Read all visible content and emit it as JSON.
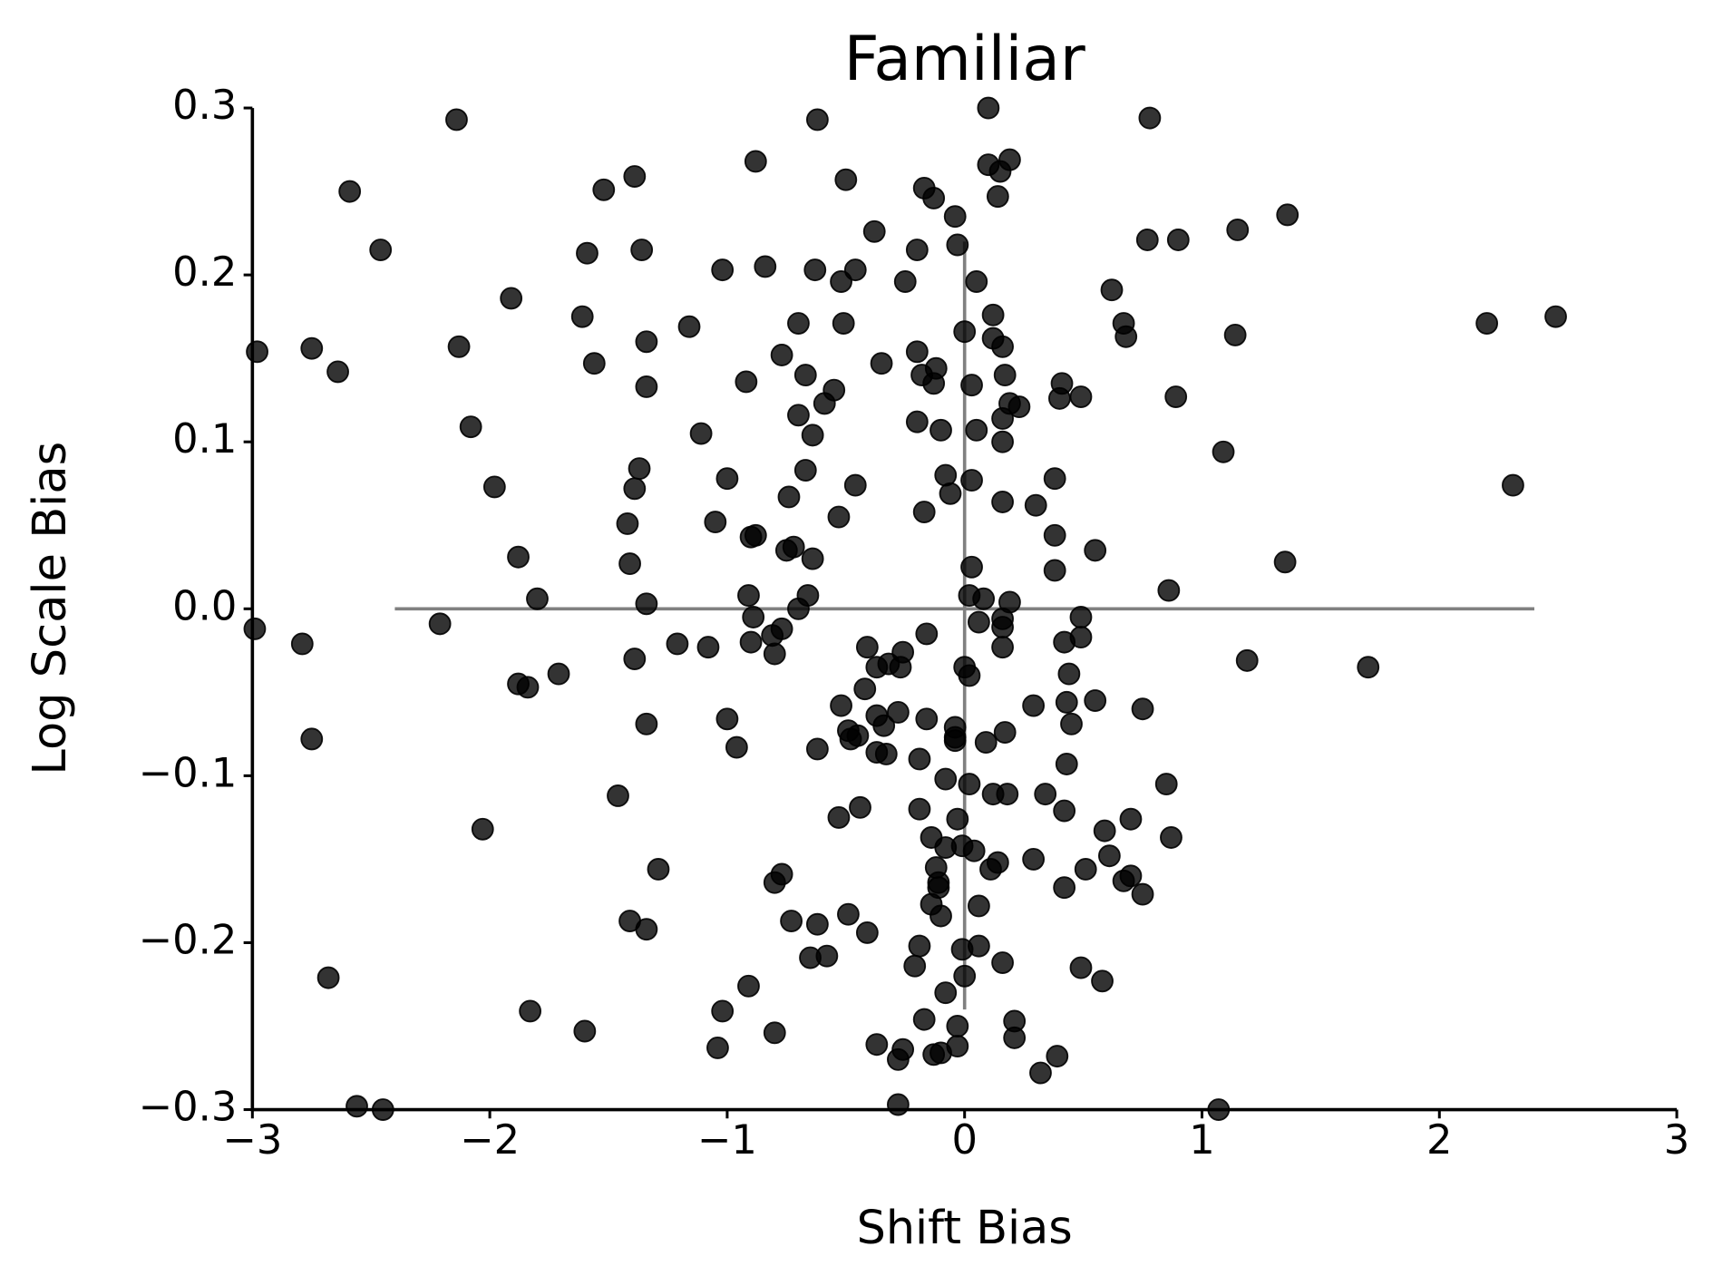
{
  "chart_data": {
    "type": "scatter",
    "title": "Familiar",
    "xlabel": "Shift Bias",
    "ylabel": "Log Scale Bias",
    "color": "#000000",
    "alpha": 0.8,
    "xlim": [
      -3,
      3
    ],
    "ylim": [
      -0.3,
      0.3
    ],
    "xticks": [
      {
        "value": -3,
        "label": "−3"
      },
      {
        "value": -2,
        "label": "−2"
      },
      {
        "value": -1,
        "label": "−1"
      },
      0,
      1,
      2,
      3
    ],
    "yticks": [
      {
        "value": -0.3,
        "label": "−0.3"
      },
      {
        "value": -0.2,
        "label": "−0.2"
      },
      {
        "value": -0.1,
        "label": "−0.1"
      },
      {
        "value": 0,
        "label": "0.0"
      },
      0.1,
      0.2,
      0.3
    ],
    "reference_lines": {
      "horizontal": {
        "y": 0,
        "xmin": -2.4,
        "xmax": 2.4
      },
      "vertical": {
        "x": 0,
        "ymin": -0.24,
        "ymax": 0.22
      },
      "color": "#808080"
    },
    "x": [
      -2.14,
      -0.62,
      0.1,
      0.78,
      -2.59,
      -0.88,
      -1.39,
      -1.52,
      -0.5,
      -0.17,
      -0.13,
      0.1,
      0.15,
      0.19,
      0.14,
      -0.04,
      -0.03,
      1.36,
      1.15,
      0.9,
      0.77,
      -2.46,
      -1.36,
      -1.59,
      -0.38,
      -0.2,
      -0.84,
      -1.02,
      -0.63,
      -0.46,
      -0.25,
      -0.52,
      0.05,
      -1.91,
      0.62,
      -1.61,
      -1.16,
      -0.7,
      -0.51,
      0.67,
      0.68,
      2.2,
      2.49,
      1.14,
      -2.98,
      -2.75,
      -2.13,
      -1.34,
      -0.77,
      -1.56,
      -2.64,
      -0.35,
      -0.2,
      -0.12,
      0.0,
      0.12,
      0.12,
      0.16,
      0.17,
      -0.18,
      -0.13,
      0.03,
      0.41,
      0.49,
      0.4,
      0.89,
      -1.34,
      -0.92,
      -0.67,
      -0.55,
      -0.59,
      0.19,
      0.23,
      0.16,
      0.05,
      -0.1,
      -0.2,
      -0.7,
      -0.64,
      -1.11,
      -2.08,
      0.16,
      1.09,
      2.31,
      -1.37,
      -1.39,
      -1.98,
      -1.0,
      -0.67,
      -0.46,
      -0.08,
      -0.06,
      0.03,
      0.38,
      -0.74,
      -0.17,
      0.16,
      0.3,
      -0.53,
      -1.05,
      -1.42,
      -0.88,
      -0.9,
      0.38,
      -1.88,
      -0.75,
      -0.72,
      -0.64,
      0.55,
      1.35,
      -1.41,
      0.03,
      0.38,
      0.86,
      -1.8,
      -1.34,
      -0.91,
      -0.66,
      -0.7,
      0.02,
      0.08,
      0.19,
      -2.99,
      -2.79,
      -2.21,
      -0.89,
      -0.9,
      -1.21,
      -1.08,
      -0.77,
      -0.81,
      -0.8,
      -1.39,
      0.06,
      0.16,
      0.16,
      0.16,
      -0.16,
      -0.41,
      -0.26,
      0.42,
      0.49,
      0.49,
      1.19,
      1.7,
      -1.71,
      -1.88,
      -1.84,
      -0.37,
      -0.32,
      -0.27,
      0.0,
      0.02,
      0.44,
      -0.42,
      0.29,
      0.43,
      0.55,
      0.75,
      -0.52,
      -0.28,
      -0.37,
      -0.16,
      -1.0,
      -1.34,
      -0.34,
      -0.49,
      -0.45,
      -0.48,
      -0.04,
      -0.04,
      -0.04,
      0.17,
      0.09,
      0.45,
      -2.75,
      -0.96,
      -0.62,
      -0.37,
      -0.33,
      -0.19,
      0.43,
      -0.08,
      0.02,
      0.85,
      -1.46,
      0.12,
      0.18,
      0.34,
      -0.44,
      -0.19,
      0.42,
      -0.53,
      -0.03,
      0.7,
      -2.03,
      0.59,
      -0.14,
      0.87,
      -0.08,
      -0.01,
      0.04,
      0.61,
      0.29,
      0.14,
      0.11,
      -0.12,
      -1.29,
      0.51,
      -0.77,
      -0.8,
      -0.11,
      0.7,
      0.67,
      -0.11,
      0.42,
      0.75,
      -0.14,
      0.06,
      -1.41,
      -0.73,
      -0.49,
      -0.1,
      -0.62,
      -1.34,
      -0.41,
      -0.19,
      -0.01,
      0.06,
      -0.65,
      -0.58,
      -0.21,
      0.16,
      0.49,
      0.58,
      -2.68,
      -0.91,
      0.0,
      -0.08,
      -1.83,
      -1.02,
      -1.6,
      -0.8,
      -0.17,
      -0.03,
      0.21,
      0.21,
      -1.04,
      -0.37,
      -0.26,
      -0.28,
      -0.13,
      -0.1,
      -0.03,
      0.39,
      0.32,
      -2.56,
      -2.45,
      -0.28,
      1.07
    ],
    "y": [
      0.293,
      0.293,
      0.3,
      0.294,
      0.25,
      0.268,
      0.259,
      0.251,
      0.257,
      0.252,
      0.246,
      0.266,
      0.262,
      0.269,
      0.247,
      0.235,
      0.218,
      0.236,
      0.227,
      0.221,
      0.221,
      0.215,
      0.215,
      0.213,
      0.226,
      0.215,
      0.205,
      0.203,
      0.203,
      0.203,
      0.196,
      0.196,
      0.196,
      0.186,
      0.191,
      0.175,
      0.169,
      0.171,
      0.171,
      0.171,
      0.163,
      0.171,
      0.175,
      0.164,
      0.154,
      0.156,
      0.157,
      0.16,
      0.152,
      0.147,
      0.142,
      0.147,
      0.154,
      0.144,
      0.166,
      0.176,
      0.162,
      0.157,
      0.14,
      0.14,
      0.135,
      0.134,
      0.135,
      0.127,
      0.126,
      0.127,
      0.133,
      0.136,
      0.14,
      0.131,
      0.123,
      0.123,
      0.121,
      0.114,
      0.107,
      0.107,
      0.112,
      0.116,
      0.104,
      0.105,
      0.109,
      0.1,
      0.094,
      0.074,
      0.084,
      0.072,
      0.073,
      0.078,
      0.083,
      0.074,
      0.08,
      0.069,
      0.077,
      0.078,
      0.067,
      0.058,
      0.064,
      0.062,
      0.055,
      0.052,
      0.051,
      0.044,
      0.043,
      0.044,
      0.031,
      0.035,
      0.037,
      0.03,
      0.035,
      0.028,
      0.027,
      0.025,
      0.023,
      0.011,
      0.006,
      0.003,
      0.008,
      0.008,
      0.0,
      0.008,
      0.006,
      0.004,
      -0.012,
      -0.021,
      -0.009,
      -0.005,
      -0.02,
      -0.021,
      -0.023,
      -0.012,
      -0.016,
      -0.027,
      -0.03,
      -0.008,
      -0.006,
      -0.011,
      -0.023,
      -0.015,
      -0.023,
      -0.026,
      -0.02,
      -0.005,
      -0.017,
      -0.031,
      -0.035,
      -0.039,
      -0.045,
      -0.047,
      -0.035,
      -0.033,
      -0.035,
      -0.035,
      -0.04,
      -0.039,
      -0.048,
      -0.058,
      -0.056,
      -0.055,
      -0.06,
      -0.058,
      -0.062,
      -0.064,
      -0.066,
      -0.066,
      -0.069,
      -0.07,
      -0.073,
      -0.076,
      -0.078,
      -0.071,
      -0.077,
      -0.079,
      -0.074,
      -0.08,
      -0.069,
      -0.078,
      -0.083,
      -0.084,
      -0.086,
      -0.087,
      -0.09,
      -0.093,
      -0.102,
      -0.105,
      -0.105,
      -0.112,
      -0.111,
      -0.111,
      -0.111,
      -0.119,
      -0.12,
      -0.121,
      -0.125,
      -0.126,
      -0.126,
      -0.132,
      -0.133,
      -0.137,
      -0.137,
      -0.143,
      -0.142,
      -0.145,
      -0.148,
      -0.15,
      -0.152,
      -0.156,
      -0.155,
      -0.156,
      -0.156,
      -0.159,
      -0.164,
      -0.164,
      -0.16,
      -0.163,
      -0.167,
      -0.167,
      -0.171,
      -0.177,
      -0.178,
      -0.187,
      -0.187,
      -0.183,
      -0.184,
      -0.189,
      -0.192,
      -0.194,
      -0.202,
      -0.204,
      -0.202,
      -0.209,
      -0.208,
      -0.214,
      -0.212,
      -0.215,
      -0.223,
      -0.221,
      -0.226,
      -0.22,
      -0.23,
      -0.241,
      -0.241,
      -0.253,
      -0.254,
      -0.246,
      -0.25,
      -0.247,
      -0.257,
      -0.263,
      -0.261,
      -0.264,
      -0.27,
      -0.267,
      -0.266,
      -0.262,
      -0.268,
      -0.278,
      -0.298,
      -0.3,
      -0.297,
      -0.3
    ]
  }
}
